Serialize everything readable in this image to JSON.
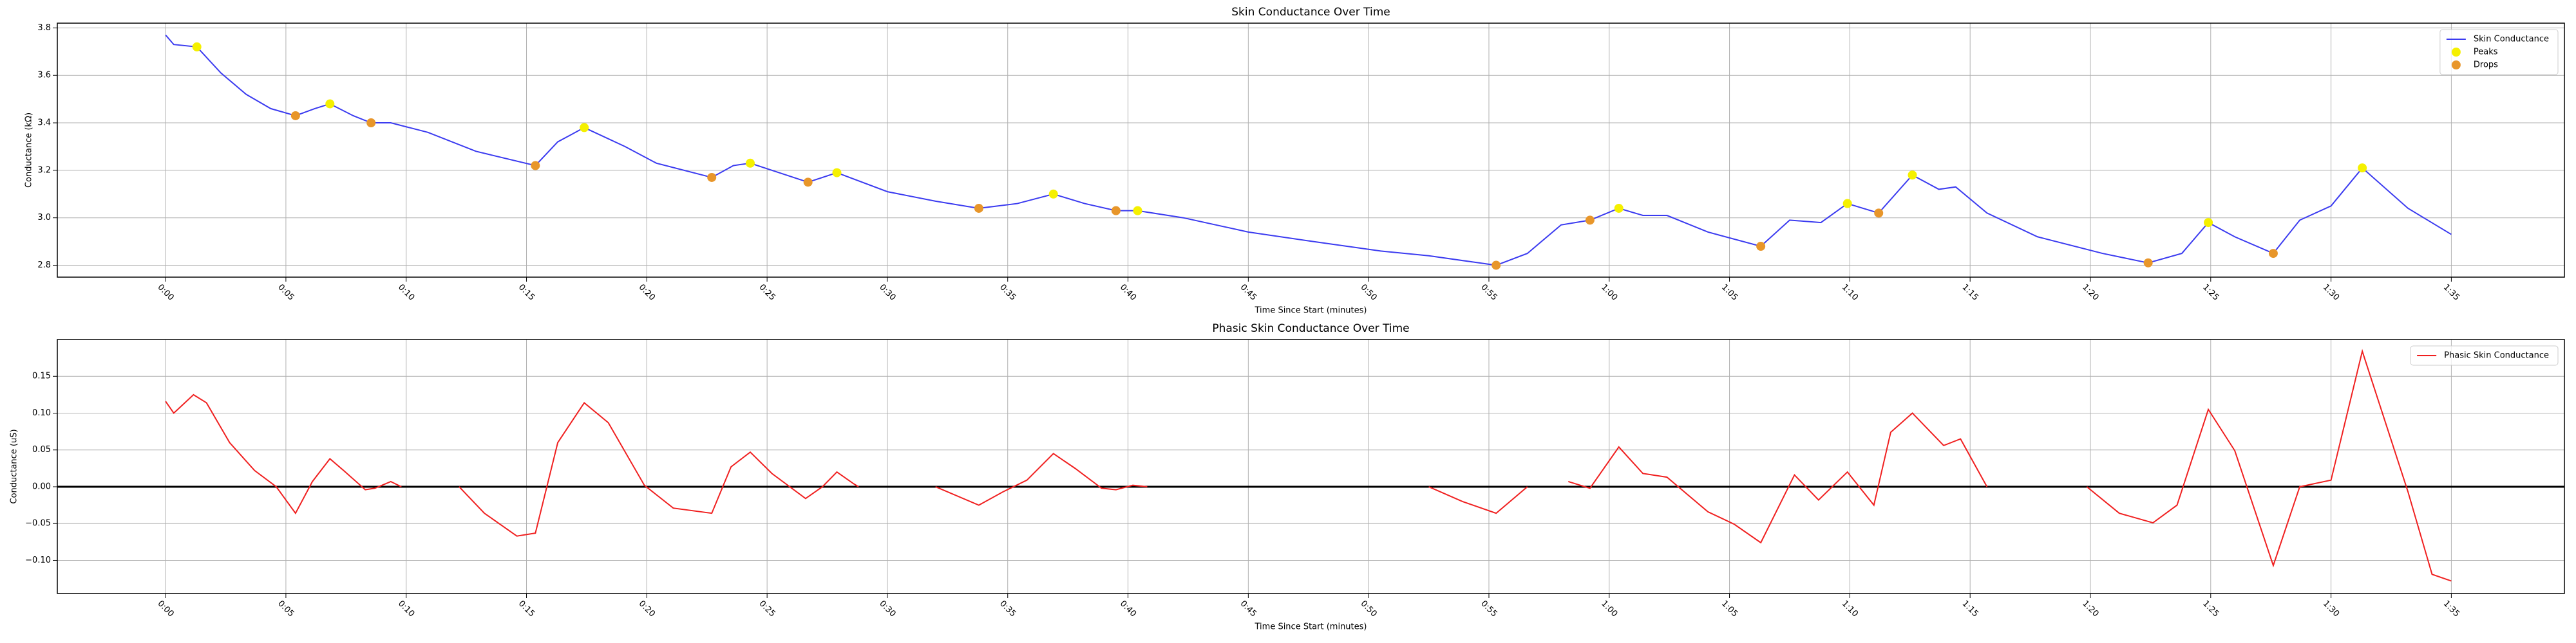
{
  "chart_data": [
    {
      "type": "line",
      "title": "Skin Conductance Over Time",
      "xlabel": "Time Since Start (minutes)",
      "ylabel": "Conductance (kΩ)",
      "xlim": [
        -4.5,
        99.7
      ],
      "ylim": [
        2.75,
        3.82
      ],
      "grid": true,
      "legend": "upper right",
      "xticks": [
        {
          "value": 0,
          "label": "0:00"
        },
        {
          "value": 5,
          "label": "0:05"
        },
        {
          "value": 10,
          "label": "0:10"
        },
        {
          "value": 15,
          "label": "0:15"
        },
        {
          "value": 20,
          "label": "0:20"
        },
        {
          "value": 25,
          "label": "0:25"
        },
        {
          "value": 30,
          "label": "0:30"
        },
        {
          "value": 35,
          "label": "0:35"
        },
        {
          "value": 40,
          "label": "0:40"
        },
        {
          "value": 45,
          "label": "0:45"
        },
        {
          "value": 50,
          "label": "0:50"
        },
        {
          "value": 55,
          "label": "0:55"
        },
        {
          "value": 60,
          "label": "1:00"
        },
        {
          "value": 65,
          "label": "1:05"
        },
        {
          "value": 70,
          "label": "1:10"
        },
        {
          "value": 75,
          "label": "1:15"
        },
        {
          "value": 80,
          "label": "1:20"
        },
        {
          "value": 85,
          "label": "1:25"
        },
        {
          "value": 90,
          "label": "1:30"
        },
        {
          "value": 95,
          "label": "1:35"
        }
      ],
      "yticks": [
        2.8,
        {
          "value": 3.0,
          "label": "3.0"
        },
        3.2,
        3.4,
        3.6,
        3.8
      ],
      "series": [
        {
          "name": "Skin Conductance",
          "color": "#3b3bf0",
          "type": "line",
          "x": [
            0,
            0.34,
            1.3,
            2.3,
            3.35,
            4.37,
            5.4,
            6.2,
            6.83,
            7.8,
            8.54,
            9.36,
            10.9,
            12.9,
            15.37,
            16.3,
            17.4,
            19.1,
            20.4,
            22.7,
            23.6,
            24.3,
            25.5,
            26.7,
            27.9,
            30,
            32,
            33.8,
            35.4,
            36.9,
            38.2,
            39.5,
            40.4,
            42.3,
            45,
            47.7,
            50.5,
            52.5,
            55.3,
            56.6,
            58,
            59.2,
            60.4,
            61.4,
            62.4,
            64.1,
            66.3,
            67.5,
            68.8,
            69.9,
            71.2,
            72.6,
            73.7,
            74.4,
            75.7,
            77.8,
            80.5,
            82.4,
            83.8,
            84.9,
            86,
            87.6,
            88.7,
            90,
            91.3,
            93.2,
            95
          ],
          "values": [
            3.77,
            3.73,
            3.72,
            3.61,
            3.52,
            3.46,
            3.43,
            3.46,
            3.48,
            3.43,
            3.4,
            3.4,
            3.36,
            3.28,
            3.22,
            3.32,
            3.38,
            3.3,
            3.23,
            3.17,
            3.22,
            3.23,
            3.19,
            3.15,
            3.19,
            3.11,
            3.07,
            3.04,
            3.06,
            3.1,
            3.06,
            3.03,
            3.03,
            3.0,
            2.94,
            2.9,
            2.86,
            2.84,
            2.8,
            2.85,
            2.97,
            2.99,
            3.04,
            3.01,
            3.01,
            2.94,
            2.88,
            2.99,
            2.98,
            3.06,
            3.02,
            3.18,
            3.12,
            3.13,
            3.02,
            2.92,
            2.85,
            2.81,
            2.85,
            2.98,
            2.92,
            2.85,
            2.99,
            3.05,
            3.21,
            3.04,
            2.93
          ]
        },
        {
          "name": "Peaks",
          "color": "#f5f000",
          "type": "scatter",
          "x": [
            1.3,
            6.83,
            17.4,
            24.3,
            27.9,
            36.9,
            40.4,
            60.4,
            69.9,
            72.6,
            84.9,
            91.3
          ],
          "values": [
            3.72,
            3.48,
            3.38,
            3.23,
            3.19,
            3.1,
            3.03,
            3.04,
            3.06,
            3.18,
            2.98,
            3.21
          ]
        },
        {
          "name": "Drops",
          "color": "#e8962a",
          "type": "scatter",
          "x": [
            5.4,
            8.54,
            15.37,
            22.7,
            26.7,
            33.8,
            39.5,
            55.3,
            59.2,
            66.3,
            71.2,
            82.4,
            87.6
          ],
          "values": [
            3.43,
            3.4,
            3.22,
            3.17,
            3.15,
            3.04,
            3.03,
            2.8,
            2.99,
            2.88,
            3.02,
            2.81,
            2.85
          ]
        }
      ]
    },
    {
      "type": "line",
      "title": "Phasic Skin Conductance Over Time",
      "xlabel": "Time Since Start (minutes)",
      "ylabel": "Conductance (uS)",
      "xlim": [
        -4.5,
        99.7
      ],
      "ylim": [
        -0.145,
        0.2
      ],
      "grid": true,
      "legend": "upper right",
      "hline": 0,
      "xticks": [
        {
          "value": 0,
          "label": "0:00"
        },
        {
          "value": 5,
          "label": "0:05"
        },
        {
          "value": 10,
          "label": "0:10"
        },
        {
          "value": 15,
          "label": "0:15"
        },
        {
          "value": 20,
          "label": "0:20"
        },
        {
          "value": 25,
          "label": "0:25"
        },
        {
          "value": 30,
          "label": "0:30"
        },
        {
          "value": 35,
          "label": "0:35"
        },
        {
          "value": 40,
          "label": "0:40"
        },
        {
          "value": 45,
          "label": "0:45"
        },
        {
          "value": 50,
          "label": "0:50"
        },
        {
          "value": 55,
          "label": "0:55"
        },
        {
          "value": 60,
          "label": "1:00"
        },
        {
          "value": 65,
          "label": "1:05"
        },
        {
          "value": 70,
          "label": "1:10"
        },
        {
          "value": 75,
          "label": "1:15"
        },
        {
          "value": 80,
          "label": "1:20"
        },
        {
          "value": 85,
          "label": "1:25"
        },
        {
          "value": 90,
          "label": "1:30"
        },
        {
          "value": 95,
          "label": "1:35"
        }
      ],
      "yticks": [
        {
          "value": -0.1,
          "label": "−0.10"
        },
        {
          "value": -0.05,
          "label": "−0.05"
        },
        {
          "value": 0,
          "label": "0.00"
        },
        {
          "value": 0.05,
          "label": "0.05"
        },
        {
          "value": 0.1,
          "label": "0.10"
        },
        {
          "value": 0.15,
          "label": "0.15"
        }
      ],
      "series": [
        {
          "name": "Phasic Skin Conductance",
          "color": "#f02020",
          "type": "line",
          "x": [
            0,
            0.34,
            1.16,
            1.7,
            2.66,
            3.7,
            4.6,
            5.4,
            6.1,
            6.83,
            7.4,
            8.3,
            8.7,
            9.36,
            9.8,
            null,
            12.2,
            13.25,
            14.6,
            15.37,
            16.3,
            17.4,
            18.4,
            19.9,
            21.1,
            22.7,
            23.5,
            24.3,
            25.2,
            26.6,
            27.3,
            27.9,
            28.6,
            28.8,
            null,
            32.0,
            33.8,
            34.8,
            35.8,
            36.9,
            37.8,
            38.9,
            39.5,
            40.2,
            40.8,
            null,
            52.5,
            53.9,
            55.3,
            56.6,
            null,
            58.3,
            59.2,
            60.4,
            61.4,
            62.4,
            64.1,
            65.2,
            66.3,
            67.7,
            68.7,
            69.9,
            71.0,
            71.7,
            72.6,
            73.9,
            74.6,
            75.7,
            null,
            79.85,
            81.2,
            82.6,
            83.6,
            84.9,
            86,
            87.6,
            88.7,
            90,
            91.3,
            93.2,
            94.2,
            95
          ],
          "values": [
            0.116,
            0.1,
            0.125,
            0.114,
            0.06,
            0.022,
            0.0,
            -0.036,
            0.007,
            0.038,
            0.022,
            -0.004,
            -0.002,
            0.007,
            0.0,
            null,
            0.0,
            -0.036,
            -0.067,
            -0.063,
            0.06,
            0.114,
            0.087,
            0.002,
            -0.029,
            -0.036,
            0.027,
            0.047,
            0.018,
            -0.016,
            0.0,
            0.02,
            0.004,
            0.0,
            null,
            0.0,
            -0.025,
            -0.007,
            0.009,
            0.045,
            0.025,
            -0.002,
            -0.004,
            0.002,
            0.0,
            null,
            0.0,
            -0.02,
            -0.036,
            0.0,
            null,
            0.007,
            -0.002,
            0.054,
            0.018,
            0.013,
            -0.034,
            -0.051,
            -0.076,
            0.016,
            -0.018,
            0.02,
            -0.025,
            0.074,
            0.1,
            0.056,
            0.065,
            0.0,
            null,
            0.0,
            -0.036,
            -0.049,
            -0.025,
            0.105,
            0.049,
            -0.107,
            0.0,
            0.009,
            0.184,
            -0.007,
            -0.119,
            -0.128
          ]
        }
      ]
    }
  ]
}
